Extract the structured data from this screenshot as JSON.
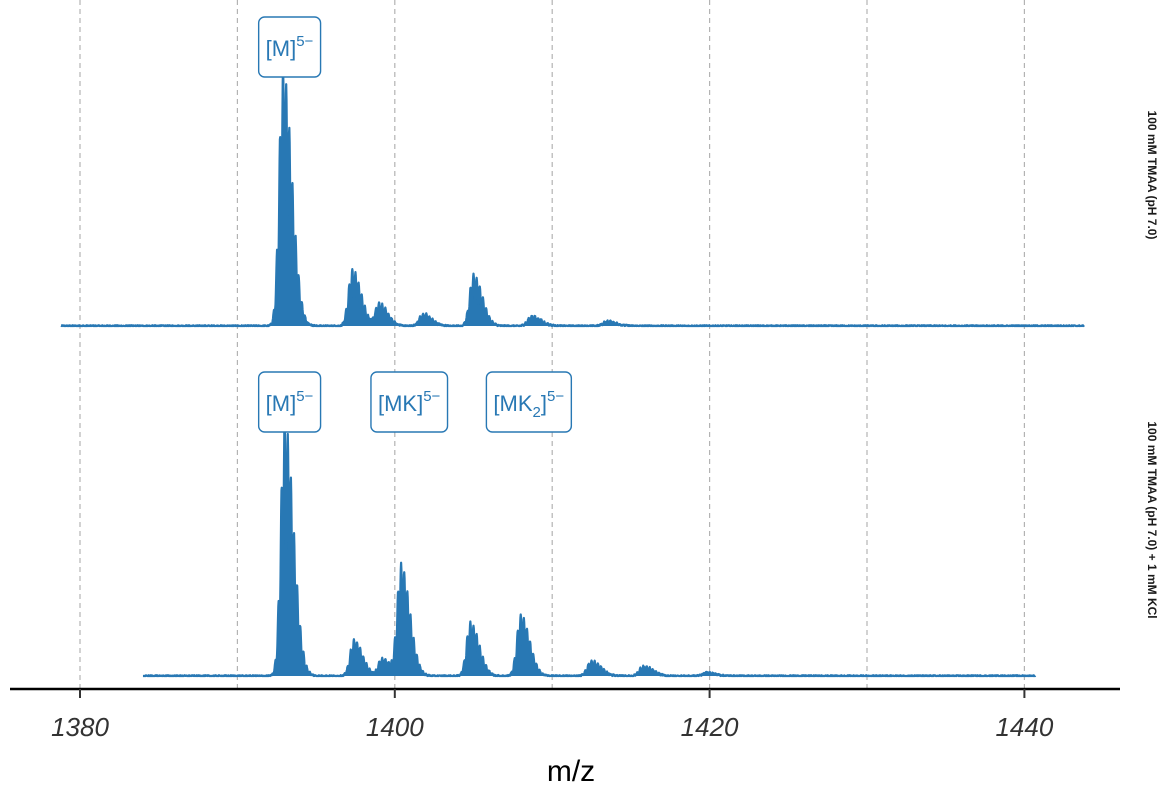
{
  "chart_data": {
    "type": "line",
    "xlabel": "m/z",
    "xlim": [
      1376,
      1446
    ],
    "x_ticks": [
      1380,
      1400,
      1420,
      1440
    ],
    "x_tick_labels": [
      "1380",
      "1400",
      "1420",
      "1440"
    ],
    "grid_x": [
      1380,
      1390,
      1400,
      1410,
      1420,
      1430,
      1440
    ],
    "grid": "vertical dashed",
    "series_color": "#2878b4",
    "panels": [
      {
        "label": "100 mM TMAA (pH 7.0)",
        "x_range": [
          1378.8,
          1443.8
        ],
        "baseline": 0.03,
        "peaks": [
          {
            "mz": 1392.9,
            "height": 1.0,
            "width": 0.55
          },
          {
            "mz": 1397.3,
            "height": 0.22,
            "width": 0.55
          },
          {
            "mz": 1399.0,
            "height": 0.09,
            "width": 0.55
          },
          {
            "mz": 1401.8,
            "height": 0.05,
            "width": 0.55
          },
          {
            "mz": 1405.0,
            "height": 0.2,
            "width": 0.55
          },
          {
            "mz": 1408.7,
            "height": 0.04,
            "width": 0.6
          },
          {
            "mz": 1413.5,
            "height": 0.02,
            "width": 0.6
          }
        ],
        "annotations": [
          {
            "mz": 1393.0,
            "base": "[M]",
            "sub": "",
            "sup": "5−"
          }
        ]
      },
      {
        "label": "100 mM TMAA (pH 7.0) + 1 mM KCl",
        "x_range": [
          1384.0,
          1440.7
        ],
        "baseline": 0.03,
        "peaks": [
          {
            "mz": 1393.0,
            "height": 1.0,
            "width": 0.55
          },
          {
            "mz": 1397.4,
            "height": 0.14,
            "width": 0.55
          },
          {
            "mz": 1399.2,
            "height": 0.07,
            "width": 0.55
          },
          {
            "mz": 1400.4,
            "height": 0.43,
            "width": 0.55
          },
          {
            "mz": 1404.8,
            "height": 0.21,
            "width": 0.55
          },
          {
            "mz": 1408.0,
            "height": 0.24,
            "width": 0.55
          },
          {
            "mz": 1412.5,
            "height": 0.06,
            "width": 0.6
          },
          {
            "mz": 1415.8,
            "height": 0.04,
            "width": 0.6
          },
          {
            "mz": 1419.8,
            "height": 0.015,
            "width": 0.6
          }
        ],
        "annotations": [
          {
            "mz": 1393.0,
            "base": "[M]",
            "sub": "",
            "sup": "5−"
          },
          {
            "mz": 1400.6,
            "base": "[MK]",
            "sub": "",
            "sup": "5−"
          },
          {
            "mz": 1408.2,
            "base": "[MK",
            "sub": "2",
            "sup": "5−",
            "close": "]"
          }
        ]
      }
    ]
  }
}
